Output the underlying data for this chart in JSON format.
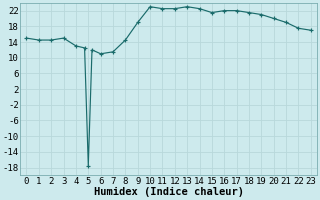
{
  "x_full": [
    0,
    1,
    2,
    3,
    4,
    4.7,
    5.0,
    5.3,
    6,
    7,
    8,
    9,
    10,
    11,
    12,
    13,
    14,
    15,
    16,
    17,
    18,
    19,
    20,
    21,
    22,
    23
  ],
  "y_full": [
    15,
    14.5,
    14.5,
    15,
    13,
    12.5,
    -17.5,
    12,
    11,
    11.5,
    14.5,
    19,
    23,
    22.5,
    22.5,
    23,
    22.5,
    21.5,
    22,
    22,
    21.5,
    21,
    20,
    19,
    17.5,
    17
  ],
  "line_color": "#1a6b6b",
  "bg_color": "#cdeaed",
  "grid_color": "#b8d8db",
  "xlabel": "Humidex (Indice chaleur)",
  "yticks": [
    22,
    18,
    14,
    10,
    6,
    2,
    -2,
    -6,
    -10,
    -14,
    -18
  ],
  "xticks": [
    0,
    1,
    2,
    3,
    4,
    5,
    6,
    7,
    8,
    9,
    10,
    11,
    12,
    13,
    14,
    15,
    16,
    17,
    18,
    19,
    20,
    21,
    22,
    23
  ],
  "ylim": [
    -20,
    24
  ],
  "xlim": [
    -0.5,
    23.5
  ],
  "xlabel_fontsize": 7.5,
  "tick_fontsize": 6.5
}
